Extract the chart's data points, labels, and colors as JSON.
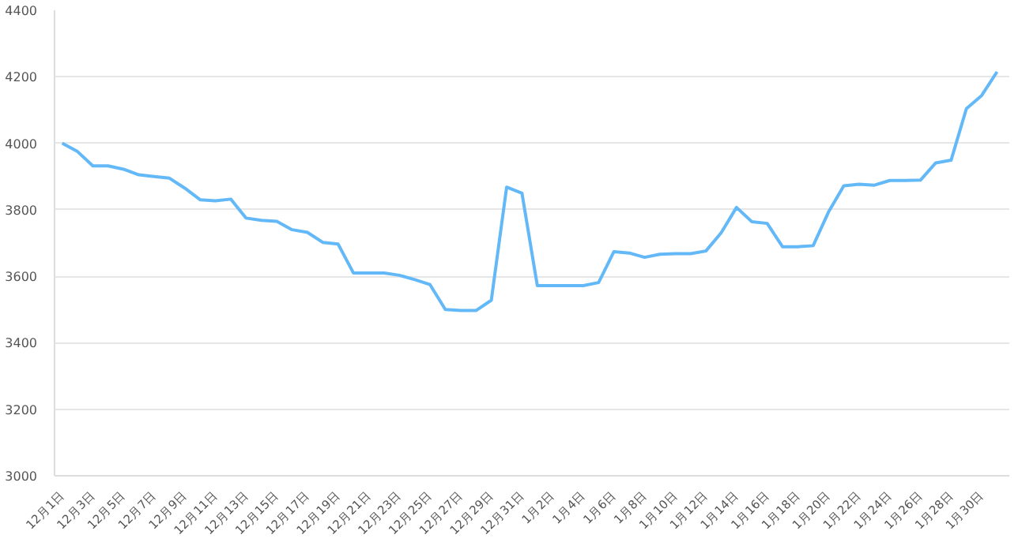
{
  "chart_data": {
    "type": "line",
    "categories": [
      "12月1日",
      null,
      "12月3日",
      null,
      "12月5日",
      null,
      "12月7日",
      null,
      "12月9日",
      null,
      "12月11日",
      null,
      "12月13日",
      null,
      "12月15日",
      null,
      "12月17日",
      null,
      "12月19日",
      null,
      "12月21日",
      null,
      "12月23日",
      null,
      "12月25日",
      null,
      "12月27日",
      null,
      "12月29日",
      null,
      "12月31日",
      null,
      "1月2日",
      null,
      "1月4日",
      null,
      "1月6日",
      null,
      "1月8日",
      null,
      "1月10日",
      null,
      "1月12日",
      null,
      "1月14日",
      null,
      "1月16日",
      null,
      "1月18日",
      null,
      "1月20日",
      null,
      "1月22日",
      null,
      "1月24日",
      null,
      "1月26日",
      null,
      "1月28日",
      null,
      "1月30日",
      null
    ],
    "series": [
      {
        "color": "#63b8f7",
        "values": [
          4000,
          3975,
          3932,
          3932,
          3922,
          3905,
          3900,
          3895,
          3865,
          3830,
          3827,
          3832,
          3775,
          3768,
          3765,
          3740,
          3732,
          3702,
          3697,
          3610,
          3610,
          3610,
          3603,
          3590,
          3575,
          3500,
          3497,
          3497,
          3528,
          3868,
          3850,
          3572,
          3572,
          3572,
          3572,
          3581,
          3674,
          3670,
          3657,
          3666,
          3668,
          3668,
          3676,
          3731,
          3807,
          3764,
          3759,
          3689,
          3689,
          3692,
          3793,
          3872,
          3877,
          3874,
          3888,
          3888,
          3889,
          3941,
          3949,
          4104,
          4144,
          4215
        ]
      }
    ],
    "ylim": [
      3000,
      4400
    ],
    "yticks": [
      3000,
      3200,
      3400,
      3600,
      3800,
      4000,
      4200,
      4400
    ],
    "grid": "y",
    "marker": "none",
    "line_style": "solid"
  }
}
